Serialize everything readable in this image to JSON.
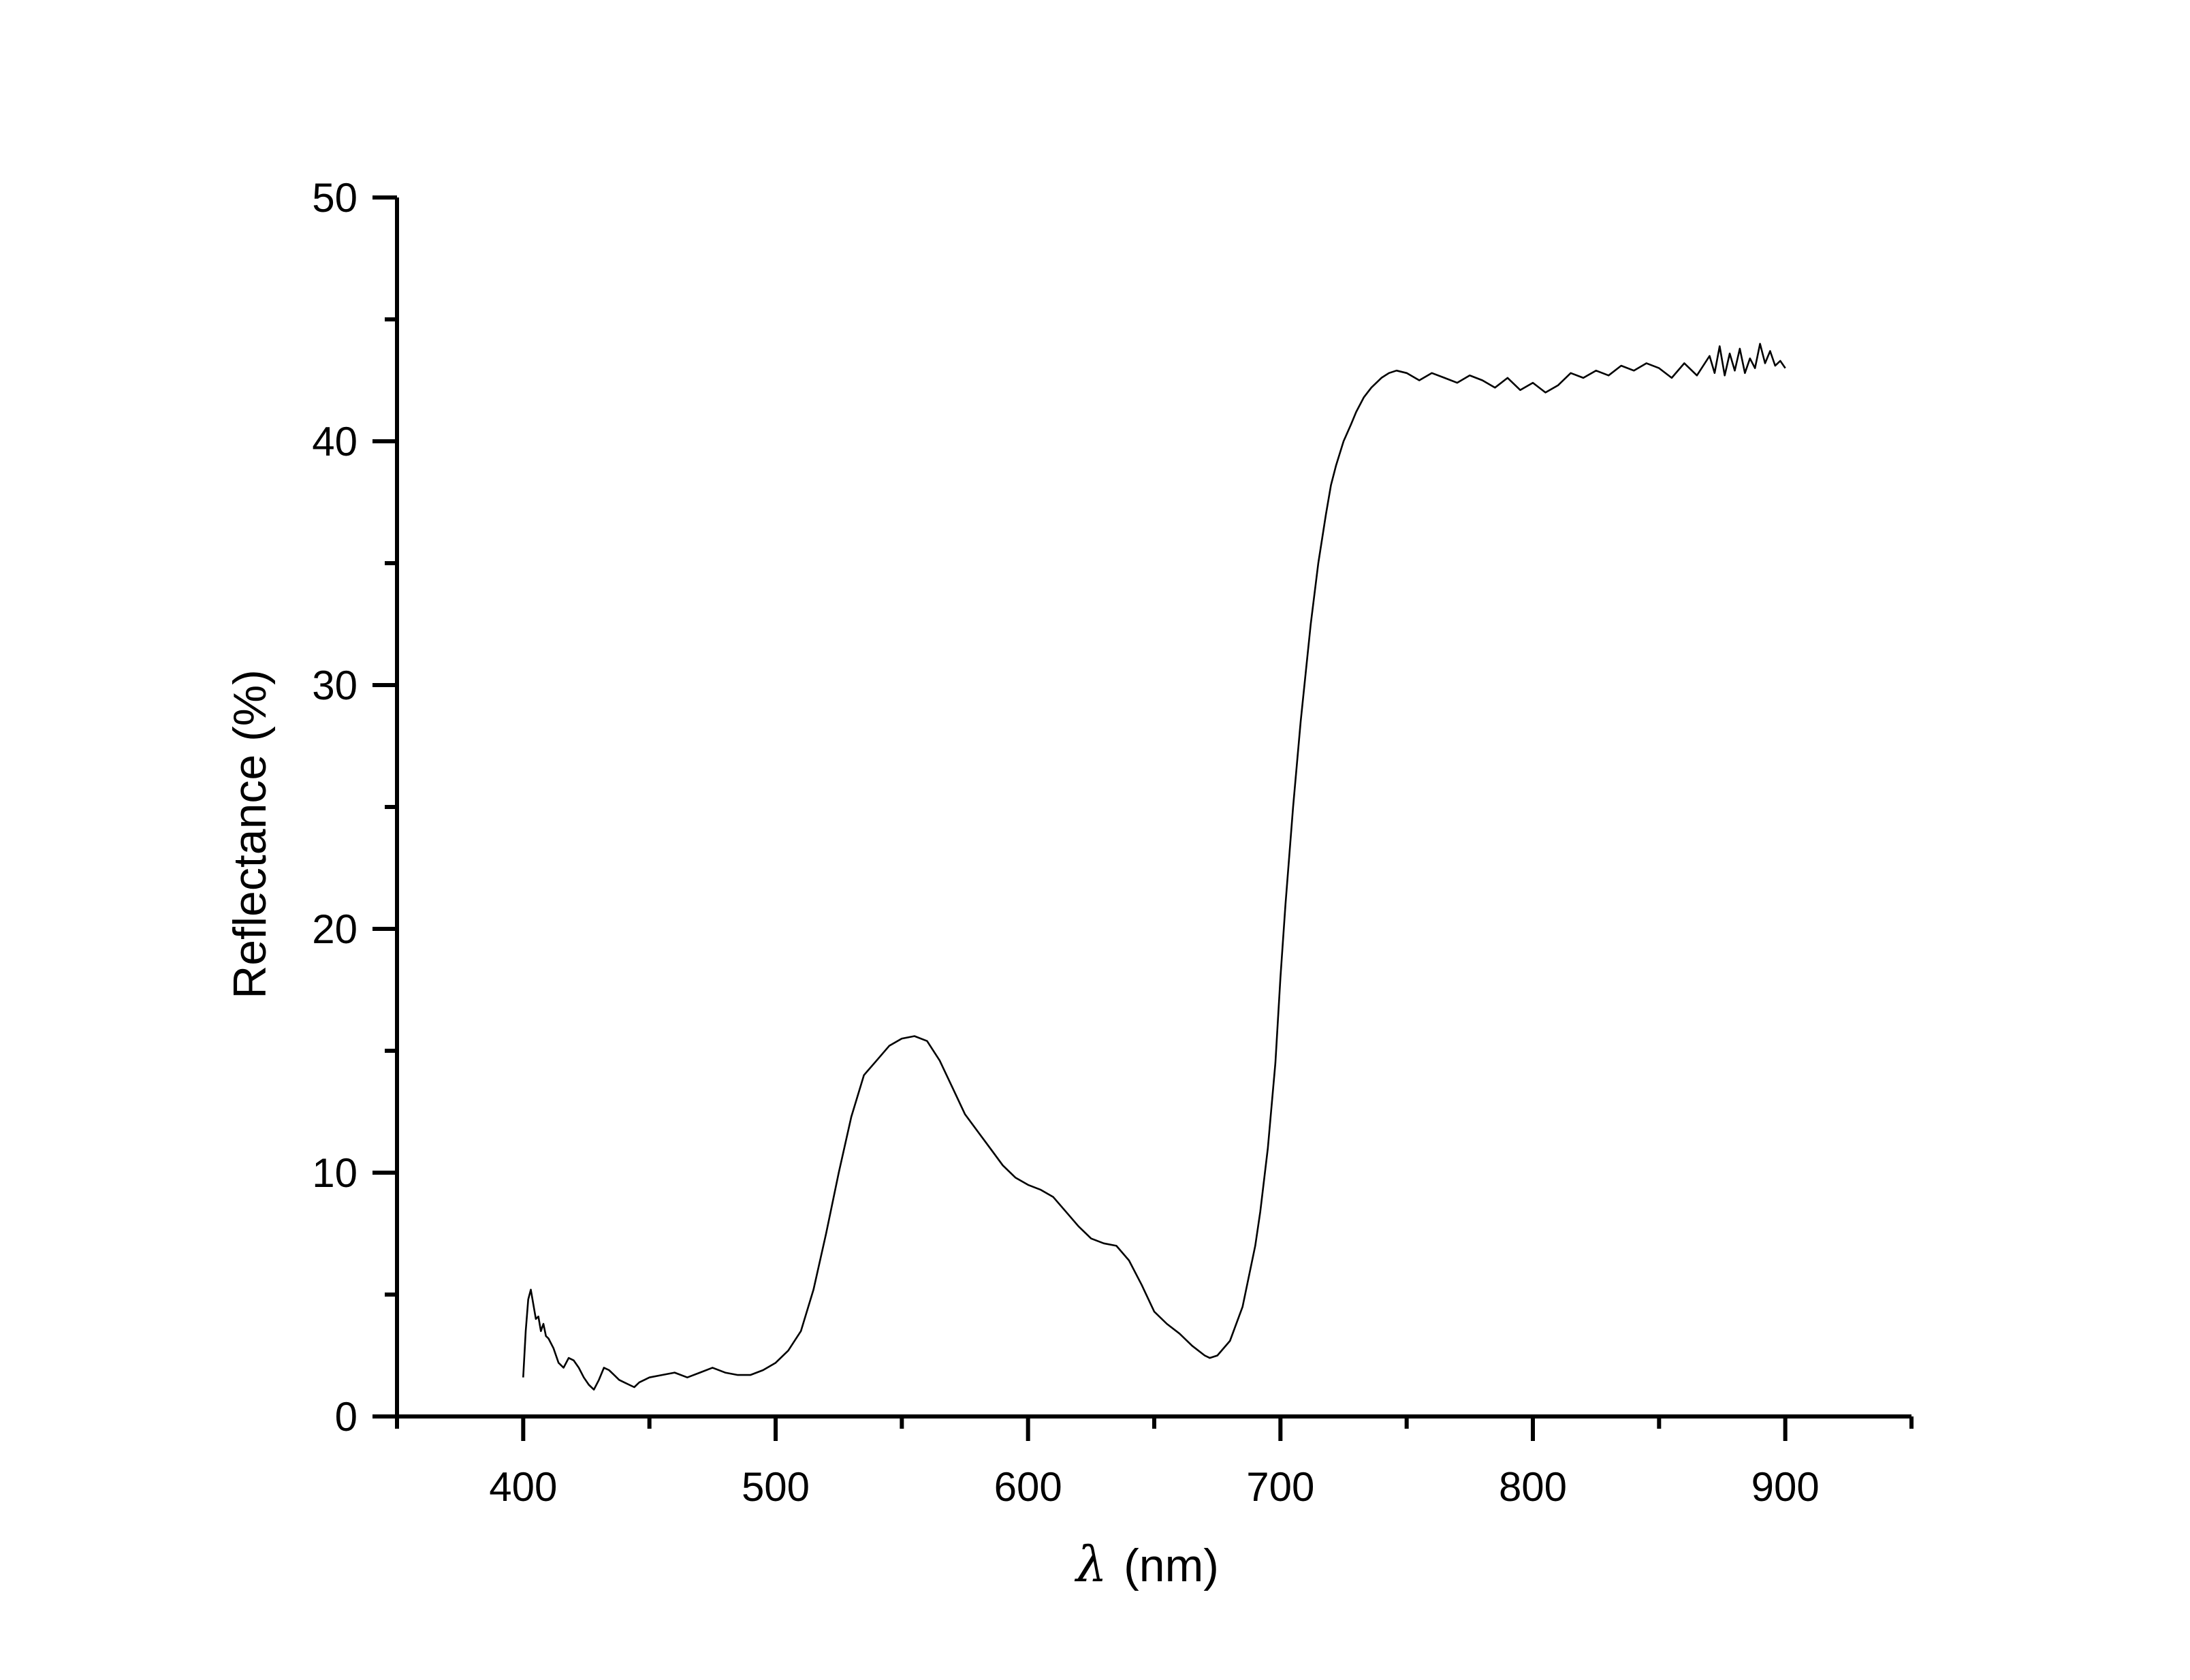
{
  "chart_data": {
    "type": "line",
    "title": "",
    "xlabel": {
      "symbol": "λ",
      "unit": "(nm)"
    },
    "ylabel": "Reflectance (%)",
    "xlim": [
      350,
      950
    ],
    "ylim": [
      0,
      50
    ],
    "x_ticks": [
      400,
      500,
      600,
      700,
      800,
      900
    ],
    "x_tick_labels": [
      "400",
      "500",
      "600",
      "700",
      "800",
      "900"
    ],
    "x_minor_ticks": [
      350,
      450,
      550,
      650,
      750,
      850,
      950
    ],
    "y_ticks": [
      0,
      10,
      20,
      30,
      40,
      50
    ],
    "y_tick_labels": [
      "0",
      "10",
      "20",
      "30",
      "40",
      "50"
    ],
    "y_minor_ticks": [
      5,
      15,
      25,
      35,
      45
    ],
    "grid": false,
    "legend": "none",
    "series": [
      {
        "color": "#000000",
        "x": [
          400,
          401,
          402,
          403,
          404,
          405,
          406,
          407,
          408,
          409,
          410,
          412,
          414,
          416,
          418,
          420,
          422,
          424,
          426,
          428,
          430,
          432,
          434,
          436,
          438,
          440,
          442,
          444,
          446,
          448,
          450,
          455,
          460,
          465,
          470,
          475,
          480,
          485,
          490,
          495,
          500,
          505,
          510,
          515,
          520,
          525,
          530,
          535,
          540,
          545,
          550,
          555,
          560,
          565,
          570,
          575,
          580,
          585,
          590,
          595,
          600,
          605,
          610,
          615,
          620,
          625,
          630,
          635,
          640,
          645,
          650,
          655,
          660,
          665,
          670,
          672,
          675,
          680,
          685,
          690,
          692,
          695,
          698,
          700,
          702,
          705,
          708,
          710,
          712,
          715,
          718,
          720,
          722,
          725,
          728,
          730,
          733,
          736,
          740,
          743,
          746,
          750,
          755,
          760,
          765,
          770,
          775,
          780,
          785,
          790,
          795,
          800,
          805,
          810,
          815,
          820,
          825,
          830,
          835,
          840,
          845,
          850,
          855,
          860,
          865,
          870,
          872,
          874,
          876,
          878,
          880,
          882,
          884,
          886,
          888,
          890,
          892,
          894,
          896,
          898,
          900
        ],
        "y": [
          1.6,
          3.5,
          4.8,
          5.2,
          4.6,
          4.0,
          4.1,
          3.5,
          3.8,
          3.3,
          3.2,
          2.8,
          2.2,
          2.0,
          2.4,
          2.3,
          2.0,
          1.6,
          1.3,
          1.1,
          1.5,
          2.0,
          1.9,
          1.7,
          1.5,
          1.4,
          1.3,
          1.2,
          1.4,
          1.5,
          1.6,
          1.7,
          1.8,
          1.6,
          1.8,
          2.0,
          1.8,
          1.7,
          1.7,
          1.9,
          2.2,
          2.7,
          3.5,
          5.2,
          7.5,
          10.0,
          12.3,
          14.0,
          14.6,
          15.2,
          15.5,
          15.6,
          15.4,
          14.6,
          13.5,
          12.4,
          11.7,
          11.0,
          10.3,
          9.8,
          9.5,
          9.3,
          9.0,
          8.4,
          7.8,
          7.3,
          7.1,
          7.0,
          6.4,
          5.4,
          4.3,
          3.8,
          3.4,
          2.9,
          2.5,
          2.4,
          2.5,
          3.1,
          4.5,
          7.0,
          8.4,
          11.0,
          14.5,
          18.0,
          21.0,
          25.0,
          28.5,
          30.5,
          32.5,
          35.0,
          37.0,
          38.2,
          39.0,
          40.0,
          40.7,
          41.2,
          41.8,
          42.2,
          42.6,
          42.8,
          42.9,
          42.8,
          42.5,
          42.8,
          42.6,
          42.4,
          42.7,
          42.5,
          42.2,
          42.6,
          42.1,
          42.4,
          42.0,
          42.3,
          42.8,
          42.6,
          42.9,
          42.7,
          43.1,
          42.9,
          43.2,
          43.0,
          42.6,
          43.2,
          42.7,
          43.5,
          42.8,
          43.9,
          42.7,
          43.6,
          42.9,
          43.8,
          42.8,
          43.4,
          43.0,
          44.0,
          43.2,
          43.7,
          43.1,
          43.3,
          43.0
        ]
      }
    ]
  }
}
